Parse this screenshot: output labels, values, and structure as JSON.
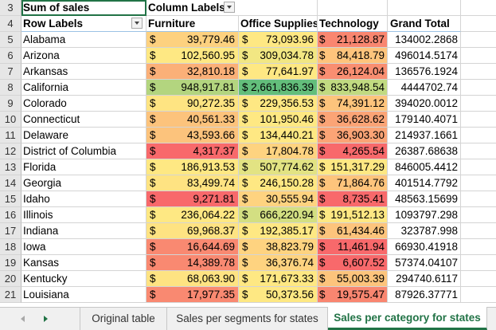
{
  "pivot": {
    "header_row_num": "3",
    "sum_label": "Sum of sales",
    "column_labels": "Column Labels",
    "row_labels_num": "4",
    "row_labels": "Row Labels",
    "columns": [
      "Furniture",
      "Office Supplies",
      "Technology",
      "Grand Total"
    ],
    "currency_symbol": "$",
    "rows": [
      {
        "num": "5",
        "state": "Alabama",
        "furniture": "39,779.46",
        "office": "73,093.96",
        "tech": "21,128.87",
        "total": "134002.2868",
        "c1": "#fdd17f",
        "c2": "#fee883",
        "c3": "#f98670"
      },
      {
        "num": "6",
        "state": "Arizona",
        "furniture": "102,560.95",
        "office": "309,034.78",
        "tech": "84,418.79",
        "total": "496014.5174",
        "c1": "#fee883",
        "c2": "#f2e783",
        "c3": "#fec47c"
      },
      {
        "num": "7",
        "state": "Arkansas",
        "furniture": "32,810.18",
        "office": "77,641.97",
        "tech": "26,124.04",
        "total": "136576.1924",
        "c1": "#fbb078",
        "c2": "#fee883",
        "c3": "#f98e71"
      },
      {
        "num": "8",
        "state": "California",
        "furniture": "948,917.81",
        "office": "2,661,836.39",
        "tech": "833,948.54",
        "total": "4444702.74",
        "c1": "#b3d57f",
        "c2": "#63be7b",
        "c3": "#c1da81"
      },
      {
        "num": "9",
        "state": "Colorado",
        "furniture": "90,272.35",
        "office": "229,356.53",
        "tech": "74,391.12",
        "total": "394020.0012",
        "c1": "#fee482",
        "c2": "#fee883",
        "c3": "#fdc47c"
      },
      {
        "num": "10",
        "state": "Connecticut",
        "furniture": "40,561.33",
        "office": "101,950.46",
        "tech": "36,628.62",
        "total": "179140.4071",
        "c1": "#fcc37c",
        "c2": "#fee883",
        "c3": "#fba476"
      },
      {
        "num": "11",
        "state": "Delaware",
        "furniture": "43,593.66",
        "office": "134,440.21",
        "tech": "36,903.30",
        "total": "214937.1661",
        "c1": "#fcc37c",
        "c2": "#fee883",
        "c3": "#fba476"
      },
      {
        "num": "12",
        "state": "District of Columbia",
        "furniture": "4,317.37",
        "office": "17,804.78",
        "tech": "4,265.54",
        "total": "26387.68638",
        "c1": "#f8696b",
        "c2": "#fed380",
        "c3": "#f8696b"
      },
      {
        "num": "13",
        "state": "Florida",
        "furniture": "186,913.53",
        "office": "507,774.62",
        "tech": "151,317.29",
        "total": "846005.4412",
        "c1": "#fee883",
        "c2": "#e2e383",
        "c3": "#fee883"
      },
      {
        "num": "14",
        "state": "Georgia",
        "furniture": "83,499.74",
        "office": "246,150.28",
        "tech": "71,864.76",
        "total": "401514.7792",
        "c1": "#fee382",
        "c2": "#fee883",
        "c3": "#fdc47c"
      },
      {
        "num": "15",
        "state": "Idaho",
        "furniture": "9,271.81",
        "office": "30,555.94",
        "tech": "8,735.41",
        "total": "48563.15699",
        "c1": "#f8696b",
        "c2": "#fed380",
        "c3": "#f8696b"
      },
      {
        "num": "16",
        "state": "Illinois",
        "furniture": "236,064.22",
        "office": "666,220.94",
        "tech": "191,512.13",
        "total": "1093797.298",
        "c1": "#fee883",
        "c2": "#d3df82",
        "c3": "#fee883"
      },
      {
        "num": "17",
        "state": "Indiana",
        "furniture": "69,968.37",
        "office": "192,385.17",
        "tech": "61,434.46",
        "total": "323787.998",
        "c1": "#fee382",
        "c2": "#fee883",
        "c3": "#fdc47c"
      },
      {
        "num": "18",
        "state": "Iowa",
        "furniture": "16,644.69",
        "office": "38,823.79",
        "tech": "11,461.94",
        "total": "66930.41918",
        "c1": "#f98971",
        "c2": "#fed380",
        "c3": "#f8696b"
      },
      {
        "num": "19",
        "state": "Kansas",
        "furniture": "14,389.78",
        "office": "36,376.74",
        "tech": "6,607.52",
        "total": "57374.04107",
        "c1": "#f98971",
        "c2": "#fed380",
        "c3": "#f8696b"
      },
      {
        "num": "20",
        "state": "Kentucky",
        "furniture": "68,063.90",
        "office": "171,673.33",
        "tech": "55,003.39",
        "total": "294740.6117",
        "c1": "#fee382",
        "c2": "#fee883",
        "c3": "#fdc47c"
      },
      {
        "num": "21",
        "state": "Louisiana",
        "furniture": "17,977.35",
        "office": "50,373.56",
        "tech": "19,575.47",
        "total": "87926.37771",
        "c1": "#f98971",
        "c2": "#fee883",
        "c3": "#f98670"
      }
    ]
  },
  "tabs": {
    "items": [
      {
        "label": "Original table"
      },
      {
        "label": "Sales per segments for states"
      },
      {
        "label": "Sales per category for states",
        "active": true
      }
    ],
    "accent": "#217346"
  }
}
